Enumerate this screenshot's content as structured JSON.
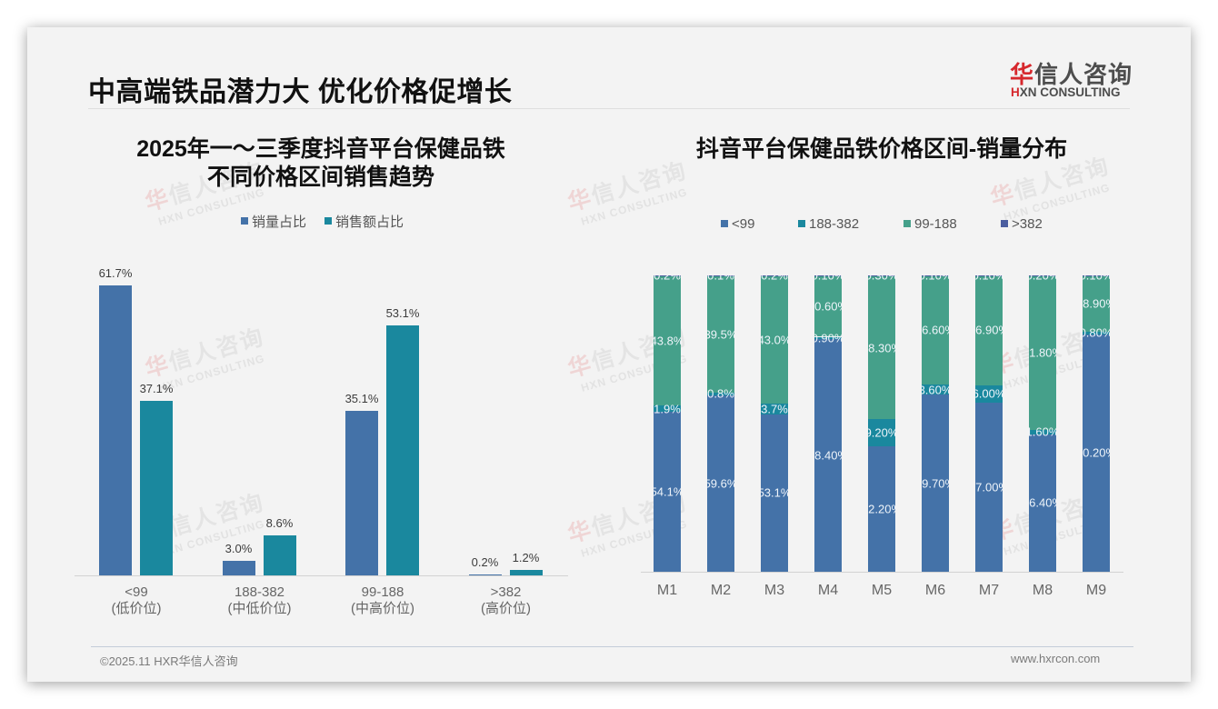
{
  "header": {
    "title": "中高端铁品潜力大 优化价格促增长",
    "logo": {
      "cn_accent": "华",
      "cn_rest": "信人咨询",
      "en_accent": "H",
      "en_rest": "XN CONSULTING"
    }
  },
  "left_chart": {
    "title_line1": "2025年一～三季度抖音平台保健品铁",
    "title_line2": "不同价格区间销售趋势",
    "legend": [
      {
        "label": "销量占比",
        "color": "#4472a8"
      },
      {
        "label": "销售额占比",
        "color": "#1a889e"
      }
    ],
    "categories": [
      {
        "range": "<99",
        "tier": "(低价位)"
      },
      {
        "range": "188-382",
        "tier": "(中低价位)"
      },
      {
        "range": "99-188",
        "tier": "(中高价位)"
      },
      {
        "range": ">382",
        "tier": "(高价位)"
      }
    ]
  },
  "right_chart": {
    "title": "抖音平台保健品铁价格区间-销量分布",
    "legend": [
      {
        "label": "<99",
        "color": "#4472a8"
      },
      {
        "label": "188-382",
        "color": "#1a889e"
      },
      {
        "label": "99-188",
        "color": "#45a08a"
      },
      {
        "label": ">382",
        "color": "#4b5ea0"
      }
    ],
    "categories": [
      "M1",
      "M2",
      "M3",
      "M4",
      "M5",
      "M6",
      "M7",
      "M8",
      "M9"
    ]
  },
  "watermark": {
    "cn_accent": "华",
    "cn_rest": "信人咨询",
    "en": "HXN CONSULTING"
  },
  "footer": {
    "copyright": "©2025.11 HXR华信人咨询",
    "website": "www.hxrcon.com"
  },
  "colors": {
    "blue": "#4472a8",
    "teal": "#1a889e",
    "green": "#45a08a",
    "slate": "#4b5ea0",
    "logo_red": "#d6282d"
  },
  "chart_data": [
    {
      "type": "bar",
      "title": "2025年一～三季度抖音平台保健品铁 不同价格区间销售趋势",
      "categories": [
        "<99 (低价位)",
        "188-382 (中低价位)",
        "99-188 (中高价位)",
        ">382 (高价位)"
      ],
      "series": [
        {
          "name": "销量占比",
          "color": "#4472a8",
          "values": [
            61.7,
            3.0,
            35.1,
            0.2
          ],
          "labels": [
            "61.7%",
            "3.0%",
            "35.1%",
            "0.2%"
          ]
        },
        {
          "name": "销售额占比",
          "color": "#1a889e",
          "values": [
            37.1,
            8.6,
            53.1,
            1.2
          ],
          "labels": [
            "37.1%",
            "8.6%",
            "53.1%",
            "1.2%"
          ]
        }
      ],
      "xlabel": "",
      "ylabel": "",
      "ylim": [
        0,
        70
      ],
      "grid": false,
      "legend_position": "top"
    },
    {
      "type": "bar",
      "stacked": true,
      "title": "抖音平台保健品铁价格区间-销量分布",
      "categories": [
        "M1",
        "M2",
        "M3",
        "M4",
        "M5",
        "M6",
        "M7",
        "M8",
        "M9"
      ],
      "series": [
        {
          "name": "<99",
          "color": "#4472a8",
          "values": [
            54.1,
            59.6,
            53.1,
            78.4,
            42.2,
            59.7,
            57.0,
            46.4,
            80.2
          ],
          "labels": [
            "54.1%",
            "59.6%",
            "53.1%",
            "78.40%",
            "42.20%",
            "59.70%",
            "57.00%",
            "46.40%",
            "80.20%"
          ]
        },
        {
          "name": "188-382",
          "color": "#1a889e",
          "values": [
            1.9,
            0.8,
            3.7,
            0.9,
            9.2,
            3.6,
            6.0,
            1.6,
            0.8
          ],
          "labels": [
            "1.9%",
            "0.8%",
            "3.7%",
            "0.90%",
            "9.20%",
            "3.60%",
            "6.00%",
            "1.60%",
            "0.80%"
          ]
        },
        {
          "name": "99-188",
          "color": "#45a08a",
          "values": [
            43.8,
            39.5,
            43.0,
            20.6,
            48.3,
            36.6,
            36.9,
            51.8,
            18.9
          ],
          "labels": [
            "43.8%",
            "39.5%",
            "43.0%",
            "20.60%",
            "48.30%",
            "36.60%",
            "36.90%",
            "51.80%",
            "18.90%"
          ]
        },
        {
          "name": ">382",
          "color": "#4b5ea0",
          "values": [
            0.2,
            0.1,
            0.2,
            0.1,
            0.3,
            0.1,
            0.1,
            0.2,
            0.1
          ],
          "labels": [
            "0.2%",
            "0.1%",
            "0.2%",
            "0.10%",
            "0.30%",
            "0.10%",
            "0.10%",
            "0.20%",
            "0.10%"
          ]
        }
      ],
      "xlabel": "",
      "ylabel": "",
      "ylim": [
        0,
        100
      ],
      "grid": false,
      "legend_position": "top"
    }
  ]
}
